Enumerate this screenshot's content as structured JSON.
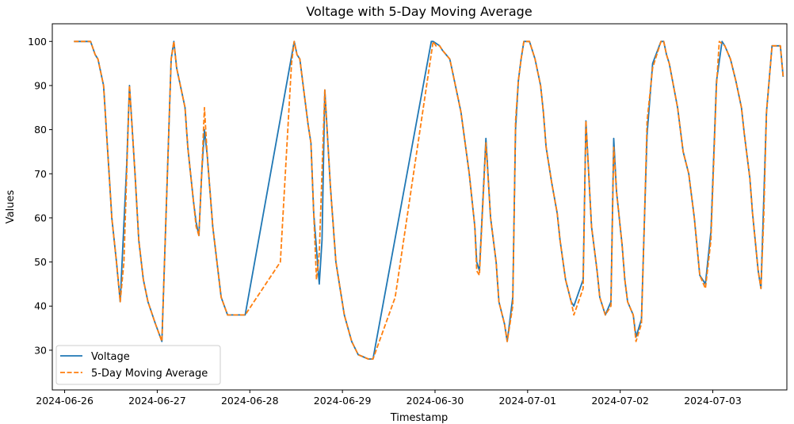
{
  "chart_data": {
    "type": "line",
    "title": "Voltage with 5-Day Moving Average",
    "xlabel": "Timestamp",
    "ylabel": "Values",
    "x_ticks": [
      "2024-06-26",
      "2024-06-27",
      "2024-06-28",
      "2024-06-29",
      "2024-06-30",
      "2024-07-01",
      "2024-07-02",
      "2024-07-03"
    ],
    "y_ticks": [
      "30",
      "40",
      "50",
      "60",
      "70",
      "80",
      "90",
      "100"
    ],
    "xlim": [
      "2024-06-25 20:48",
      "2024-07-03 19:12"
    ],
    "ylim": [
      21,
      104
    ],
    "grid": false,
    "legend_position": "lower-left",
    "series": [
      {
        "name": "Voltage",
        "color": "#1f77b4",
        "style": "solid",
        "points": [
          [
            "2024-06-26 02:24",
            100
          ],
          [
            "2024-06-26 06:43",
            100
          ],
          [
            "2024-06-26 07:55",
            97
          ],
          [
            "2024-06-26 08:38",
            96
          ],
          [
            "2024-06-26 10:05",
            90
          ],
          [
            "2024-06-26 10:48",
            80
          ],
          [
            "2024-06-26 11:31",
            70
          ],
          [
            "2024-06-26 12:14",
            60
          ],
          [
            "2024-06-26 13:26",
            50
          ],
          [
            "2024-06-26 14:24",
            41
          ],
          [
            "2024-06-26 16:05",
            72
          ],
          [
            "2024-06-26 16:48",
            90
          ],
          [
            "2024-06-26 18:14",
            70
          ],
          [
            "2024-06-26 19:12",
            55
          ],
          [
            "2024-06-26 20:24",
            46
          ],
          [
            "2024-06-26 21:36",
            41
          ],
          [
            "2024-06-26 23:31",
            36
          ],
          [
            "2024-06-27 01:12",
            32
          ],
          [
            "2024-06-27 03:36",
            96
          ],
          [
            "2024-06-27 04:19",
            100
          ],
          [
            "2024-06-27 05:02",
            94
          ],
          [
            "2024-06-27 06:29",
            88
          ],
          [
            "2024-06-27 07:12",
            85
          ],
          [
            "2024-06-27 07:55",
            76
          ],
          [
            "2024-06-27 09:22",
            64
          ],
          [
            "2024-06-27 10:05",
            59
          ],
          [
            "2024-06-27 10:48",
            56
          ],
          [
            "2024-06-27 11:31",
            70
          ],
          [
            "2024-06-27 12:14",
            80
          ],
          [
            "2024-06-27 12:58",
            74
          ],
          [
            "2024-06-27 14:24",
            58
          ],
          [
            "2024-06-27 16:34",
            42
          ],
          [
            "2024-06-27 18:14",
            38
          ],
          [
            "2024-06-27 22:48",
            38
          ],
          [
            "2024-06-28 11:31",
            100
          ],
          [
            "2024-06-28 12:14",
            97
          ],
          [
            "2024-06-28 12:58",
            96
          ],
          [
            "2024-06-28 14:24",
            86
          ],
          [
            "2024-06-28 15:07",
            81
          ],
          [
            "2024-06-28 15:50",
            77
          ],
          [
            "2024-06-28 16:34",
            61
          ],
          [
            "2024-06-28 18:00",
            45
          ],
          [
            "2024-06-28 18:43",
            55
          ],
          [
            "2024-06-28 19:26",
            89
          ],
          [
            "2024-06-28 20:53",
            67
          ],
          [
            "2024-06-28 22:19",
            50
          ],
          [
            "2024-06-29 00:29",
            38
          ],
          [
            "2024-06-29 02:24",
            32
          ],
          [
            "2024-06-29 04:05",
            29
          ],
          [
            "2024-06-29 06:43",
            28
          ],
          [
            "2024-06-29 07:55",
            28
          ],
          [
            "2024-06-29 23:02",
            100
          ],
          [
            "2024-06-29 23:31",
            100
          ],
          [
            "2024-06-30 01:12",
            99
          ],
          [
            "2024-06-30 01:55",
            98
          ],
          [
            "2024-06-30 03:50",
            96
          ],
          [
            "2024-06-30 04:34",
            93
          ],
          [
            "2024-06-30 06:43",
            84
          ],
          [
            "2024-06-30 08:53",
            70
          ],
          [
            "2024-06-30 10:19",
            58
          ],
          [
            "2024-06-30 10:48",
            50
          ],
          [
            "2024-06-30 11:31",
            48
          ],
          [
            "2024-06-30 13:12",
            78
          ],
          [
            "2024-06-30 14:24",
            60
          ],
          [
            "2024-06-30 15:50",
            50
          ],
          [
            "2024-06-30 16:34",
            41
          ],
          [
            "2024-06-30 18:00",
            36
          ],
          [
            "2024-06-30 18:43",
            32
          ],
          [
            "2024-06-30 20:09",
            42
          ],
          [
            "2024-06-30 20:53",
            80
          ],
          [
            "2024-06-30 21:36",
            91
          ],
          [
            "2024-06-30 22:19",
            96
          ],
          [
            "2024-06-30 23:02",
            100
          ],
          [
            "2024-07-01 00:29",
            100
          ],
          [
            "2024-07-01 01:55",
            96
          ],
          [
            "2024-07-01 03:22",
            90
          ],
          [
            "2024-07-01 04:05",
            84
          ],
          [
            "2024-07-01 04:48",
            76
          ],
          [
            "2024-07-01 06:14",
            68
          ],
          [
            "2024-07-01 07:41",
            61
          ],
          [
            "2024-07-01 08:24",
            55
          ],
          [
            "2024-07-01 09:50",
            46
          ],
          [
            "2024-07-01 11:17",
            41
          ],
          [
            "2024-07-01 12:00",
            40
          ],
          [
            "2024-07-01 14:24",
            46
          ],
          [
            "2024-07-01 15:07",
            82
          ],
          [
            "2024-07-01 16:34",
            58
          ],
          [
            "2024-07-01 18:00",
            48
          ],
          [
            "2024-07-01 18:43",
            42
          ],
          [
            "2024-07-01 20:09",
            38
          ],
          [
            "2024-07-01 21:36",
            41
          ],
          [
            "2024-07-01 22:19",
            78
          ],
          [
            "2024-07-01 23:02",
            66
          ],
          [
            "2024-07-02 00:29",
            54
          ],
          [
            "2024-07-02 01:12",
            46
          ],
          [
            "2024-07-02 01:55",
            41
          ],
          [
            "2024-07-02 03:22",
            38
          ],
          [
            "2024-07-02 04:05",
            33
          ],
          [
            "2024-07-02 05:31",
            37
          ],
          [
            "2024-07-02 06:14",
            58
          ],
          [
            "2024-07-02 06:58",
            79
          ],
          [
            "2024-07-02 08:24",
            95
          ],
          [
            "2024-07-02 10:34",
            100
          ],
          [
            "2024-07-02 11:17",
            100
          ],
          [
            "2024-07-02 12:00",
            97
          ],
          [
            "2024-07-02 12:43",
            95
          ],
          [
            "2024-07-02 14:53",
            85
          ],
          [
            "2024-07-02 16:19",
            75
          ],
          [
            "2024-07-02 17:46",
            70
          ],
          [
            "2024-07-02 19:12",
            60
          ],
          [
            "2024-07-02 20:38",
            47
          ],
          [
            "2024-07-02 22:05",
            45
          ],
          [
            "2024-07-02 23:31",
            57
          ],
          [
            "2024-07-03 00:58",
            91
          ],
          [
            "2024-07-03 02:24",
            100
          ],
          [
            "2024-07-03 03:07",
            99
          ],
          [
            "2024-07-03 04:34",
            96
          ],
          [
            "2024-07-03 06:00",
            91
          ],
          [
            "2024-07-03 07:26",
            85
          ],
          [
            "2024-07-03 08:10",
            79
          ],
          [
            "2024-07-03 09:36",
            69
          ],
          [
            "2024-07-03 10:19",
            61
          ],
          [
            "2024-07-03 11:46",
            48
          ],
          [
            "2024-07-03 12:29",
            44
          ],
          [
            "2024-07-03 13:55",
            84
          ],
          [
            "2024-07-03 15:22",
            99
          ],
          [
            "2024-07-03 16:05",
            99
          ],
          [
            "2024-07-03 17:31",
            99
          ],
          [
            "2024-07-03 18:14",
            92
          ]
        ]
      },
      {
        "name": "5-Day Moving Average",
        "color": "#ff7f0e",
        "style": "dashed",
        "points": [
          [
            "2024-06-26 02:24",
            100
          ],
          [
            "2024-06-26 06:43",
            100
          ],
          [
            "2024-06-26 07:55",
            97
          ],
          [
            "2024-06-26 08:38",
            96
          ],
          [
            "2024-06-26 10:05",
            90
          ],
          [
            "2024-06-26 10:48",
            80
          ],
          [
            "2024-06-26 11:31",
            70
          ],
          [
            "2024-06-26 12:14",
            60
          ],
          [
            "2024-06-26 13:26",
            50
          ],
          [
            "2024-06-26 14:24",
            41
          ],
          [
            "2024-06-26 15:22",
            50
          ],
          [
            "2024-06-26 16:48",
            90
          ],
          [
            "2024-06-26 18:14",
            70
          ],
          [
            "2024-06-26 19:12",
            55
          ],
          [
            "2024-06-26 20:24",
            46
          ],
          [
            "2024-06-26 21:36",
            41
          ],
          [
            "2024-06-26 23:31",
            36
          ],
          [
            "2024-06-27 01:12",
            32
          ],
          [
            "2024-06-27 03:36",
            96
          ],
          [
            "2024-06-27 04:19",
            100
          ],
          [
            "2024-06-27 05:02",
            94
          ],
          [
            "2024-06-27 06:29",
            88
          ],
          [
            "2024-06-27 07:12",
            85
          ],
          [
            "2024-06-27 07:55",
            76
          ],
          [
            "2024-06-27 09:22",
            64
          ],
          [
            "2024-06-27 10:05",
            58
          ],
          [
            "2024-06-27 10:48",
            56
          ],
          [
            "2024-06-27 11:31",
            70
          ],
          [
            "2024-06-27 12:14",
            85
          ],
          [
            "2024-06-27 12:58",
            74
          ],
          [
            "2024-06-27 14:24",
            58
          ],
          [
            "2024-06-27 16:34",
            42
          ],
          [
            "2024-06-27 18:14",
            38
          ],
          [
            "2024-06-27 22:48",
            38
          ],
          [
            "2024-06-28 07:55",
            50
          ],
          [
            "2024-06-28 10:48",
            95
          ],
          [
            "2024-06-28 11:31",
            100
          ],
          [
            "2024-06-28 12:14",
            97
          ],
          [
            "2024-06-28 12:58",
            96
          ],
          [
            "2024-06-28 14:24",
            86
          ],
          [
            "2024-06-28 15:07",
            81
          ],
          [
            "2024-06-28 15:50",
            77
          ],
          [
            "2024-06-28 16:34",
            61
          ],
          [
            "2024-06-28 17:17",
            46
          ],
          [
            "2024-06-28 18:00",
            52
          ],
          [
            "2024-06-28 19:26",
            89
          ],
          [
            "2024-06-28 20:53",
            67
          ],
          [
            "2024-06-28 22:19",
            50
          ],
          [
            "2024-06-29 00:29",
            38
          ],
          [
            "2024-06-29 02:24",
            32
          ],
          [
            "2024-06-29 04:05",
            29
          ],
          [
            "2024-06-29 06:43",
            28
          ],
          [
            "2024-06-29 07:55",
            28
          ],
          [
            "2024-06-29 13:41",
            42
          ],
          [
            "2024-06-29 23:31",
            100
          ],
          [
            "2024-06-30 00:14",
            99
          ],
          [
            "2024-06-30 01:12",
            99
          ],
          [
            "2024-06-30 01:55",
            98
          ],
          [
            "2024-06-30 03:50",
            96
          ],
          [
            "2024-06-30 04:34",
            93
          ],
          [
            "2024-06-30 06:43",
            84
          ],
          [
            "2024-06-30 08:53",
            70
          ],
          [
            "2024-06-30 10:19",
            58
          ],
          [
            "2024-06-30 10:48",
            48
          ],
          [
            "2024-06-30 11:31",
            47
          ],
          [
            "2024-06-30 13:12",
            77
          ],
          [
            "2024-06-30 14:24",
            60
          ],
          [
            "2024-06-30 15:50",
            50
          ],
          [
            "2024-06-30 16:34",
            41
          ],
          [
            "2024-06-30 18:00",
            36
          ],
          [
            "2024-06-30 18:43",
            32
          ],
          [
            "2024-06-30 20:09",
            40
          ],
          [
            "2024-06-30 20:53",
            82
          ],
          [
            "2024-06-30 21:36",
            91
          ],
          [
            "2024-06-30 22:19",
            96
          ],
          [
            "2024-06-30 23:02",
            100
          ],
          [
            "2024-07-01 00:29",
            100
          ],
          [
            "2024-07-01 01:55",
            96
          ],
          [
            "2024-07-01 03:22",
            90
          ],
          [
            "2024-07-01 04:05",
            84
          ],
          [
            "2024-07-01 04:48",
            76
          ],
          [
            "2024-07-01 06:14",
            68
          ],
          [
            "2024-07-01 07:41",
            61
          ],
          [
            "2024-07-01 08:24",
            55
          ],
          [
            "2024-07-01 09:50",
            46
          ],
          [
            "2024-07-01 11:17",
            41
          ],
          [
            "2024-07-01 12:00",
            38
          ],
          [
            "2024-07-01 14:24",
            44
          ],
          [
            "2024-07-01 15:07",
            82
          ],
          [
            "2024-07-01 16:34",
            58
          ],
          [
            "2024-07-01 18:00",
            48
          ],
          [
            "2024-07-01 18:43",
            42
          ],
          [
            "2024-07-01 20:09",
            38
          ],
          [
            "2024-07-01 21:36",
            40
          ],
          [
            "2024-07-01 22:19",
            76
          ],
          [
            "2024-07-01 23:02",
            66
          ],
          [
            "2024-07-02 00:29",
            54
          ],
          [
            "2024-07-02 01:12",
            46
          ],
          [
            "2024-07-02 01:55",
            41
          ],
          [
            "2024-07-02 03:22",
            38
          ],
          [
            "2024-07-02 04:05",
            32
          ],
          [
            "2024-07-02 05:31",
            36
          ],
          [
            "2024-07-02 06:14",
            58
          ],
          [
            "2024-07-02 06:58",
            82
          ],
          [
            "2024-07-02 08:24",
            94
          ],
          [
            "2024-07-02 09:07",
            96
          ],
          [
            "2024-07-02 10:34",
            100
          ],
          [
            "2024-07-02 11:17",
            100
          ],
          [
            "2024-07-02 12:00",
            97
          ],
          [
            "2024-07-02 12:43",
            95
          ],
          [
            "2024-07-02 14:53",
            85
          ],
          [
            "2024-07-02 16:19",
            75
          ],
          [
            "2024-07-02 17:46",
            70
          ],
          [
            "2024-07-02 19:12",
            60
          ],
          [
            "2024-07-02 20:38",
            47
          ],
          [
            "2024-07-02 22:05",
            44
          ],
          [
            "2024-07-02 23:31",
            55
          ],
          [
            "2024-07-03 00:58",
            90
          ],
          [
            "2024-07-03 01:41",
            100
          ],
          [
            "2024-07-03 03:07",
            99
          ],
          [
            "2024-07-03 04:34",
            96
          ],
          [
            "2024-07-03 06:00",
            91
          ],
          [
            "2024-07-03 07:26",
            85
          ],
          [
            "2024-07-03 08:10",
            79
          ],
          [
            "2024-07-03 09:36",
            69
          ],
          [
            "2024-07-03 10:19",
            61
          ],
          [
            "2024-07-03 11:46",
            48
          ],
          [
            "2024-07-03 12:29",
            44
          ],
          [
            "2024-07-03 13:12",
            60
          ],
          [
            "2024-07-03 13:55",
            84
          ],
          [
            "2024-07-03 15:22",
            99
          ],
          [
            "2024-07-03 16:05",
            99
          ],
          [
            "2024-07-03 17:31",
            99
          ],
          [
            "2024-07-03 18:14",
            92
          ]
        ]
      }
    ]
  }
}
